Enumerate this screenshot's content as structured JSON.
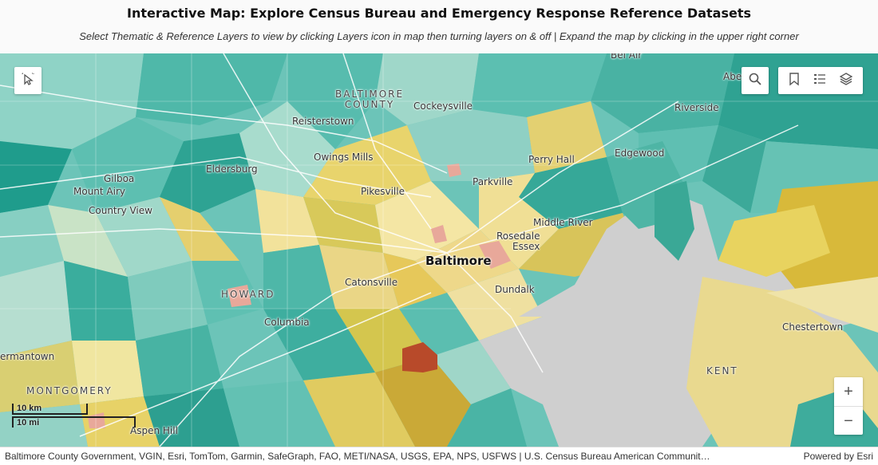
{
  "header": {
    "title": "Interactive Map:  Explore Census Bureau and Emergency Response Reference Datasets",
    "subtitle": "Select Thematic & Reference Layers to view by clicking Layers icon in map then turning layers on & off | Expand the map by clicking in the upper right corner"
  },
  "map": {
    "labels": {
      "baltimore_county": "BALTIMORE\nCOUNTY",
      "cockeysville": "Cockeysville",
      "reisterstown": "Reisterstown",
      "owings_mills": "Owings Mills",
      "perry_hall": "Perry Hall",
      "edgewood": "Edgewood",
      "riverside": "Riverside",
      "bel_air": "Bel Air",
      "aberdeen": "Abe",
      "eldersburg": "Eldersburg",
      "gilboa": "Gilboa",
      "mount_airy": "Mount Airy",
      "country_view": "Country View",
      "pikesville": "Pikesville",
      "parkville": "Parkville",
      "middle_river": "Middle River",
      "rosedale": "Rosedale",
      "essex": "Essex",
      "baltimore": "Baltimore",
      "catonsville": "Catonsville",
      "dundalk": "Dundalk",
      "howard": "HOWARD",
      "columbia": "Columbia",
      "germantown": "ermantown",
      "montgomery": "MONTGOMERY",
      "aspen_hill": "Aspen Hill",
      "kent": "KENT",
      "chestertown": "Chestertown"
    },
    "scale": {
      "km": "10 km",
      "mi": "10 mi"
    },
    "icons": [
      "select-icon",
      "search-icon",
      "bookmark-icon",
      "legend-icon",
      "layers-icon",
      "zoom-in-icon",
      "zoom-out-icon"
    ],
    "zoom_in": "+",
    "zoom_out": "−"
  },
  "attribution": {
    "sources": "Baltimore County Government, VGIN, Esri, TomTom, Garmin, SafeGraph, FAO, METI/NASA, USGS, EPA, NPS, USFWS | U.S. Census Bureau American Communit…",
    "powered": "Powered by Esri"
  }
}
